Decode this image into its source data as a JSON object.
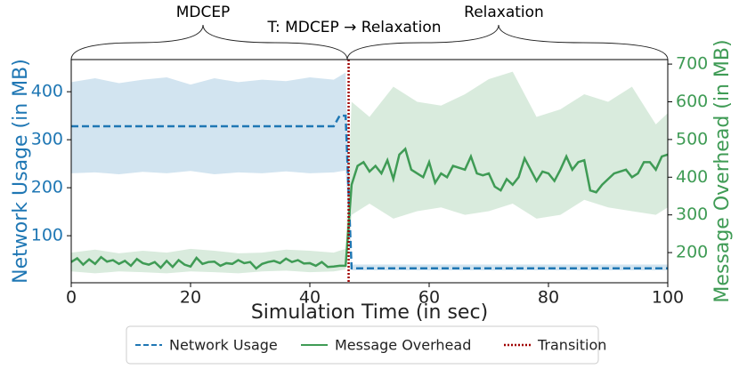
{
  "chart_data": {
    "type": "line",
    "annotations": [
      "MDCEP",
      "T: MDCEP → Relaxation",
      "Relaxation"
    ],
    "xlabel": "Simulation Time (in sec)",
    "ylabel": "Network Usage (in MB)",
    "y2label": "Message Overhead (in MB)",
    "xlim": [
      0,
      100
    ],
    "xticks": [
      0,
      20,
      40,
      60,
      80,
      100
    ],
    "ylim": [
      2,
      467
    ],
    "yticks": [
      100,
      200,
      300,
      400
    ],
    "y2lim": [
      120,
      712
    ],
    "y2ticks": [
      200,
      300,
      400,
      500,
      600,
      700
    ],
    "band_x": [
      0,
      4,
      8,
      12,
      16,
      20,
      24,
      28,
      32,
      36,
      40,
      44,
      46,
      47,
      50,
      54,
      58,
      62,
      66,
      70,
      74,
      78,
      82,
      86,
      90,
      94,
      98,
      100
    ],
    "series": [
      {
        "name": "Network Usage",
        "color": "#1f77b4",
        "axis": "y",
        "dashed": true,
        "x": [
          0,
          44,
          45,
          46,
          47,
          100
        ],
        "values": [
          328,
          328,
          350,
          350,
          32,
          32
        ],
        "band_lower": [
          230,
          232,
          228,
          233,
          230,
          235,
          228,
          232,
          230,
          234,
          230,
          232,
          236,
          28,
          28,
          28,
          28,
          28,
          28,
          28,
          28,
          28,
          28,
          28,
          28,
          28,
          28,
          28
        ],
        "band_upper": [
          420,
          428,
          418,
          425,
          430,
          415,
          428,
          420,
          425,
          422,
          430,
          425,
          440,
          40,
          40,
          40,
          40,
          40,
          40,
          40,
          40,
          40,
          40,
          40,
          40,
          40,
          40,
          40
        ]
      },
      {
        "name": "Message Overhead",
        "color": "#3f9b55",
        "axis": "y2",
        "dashed": false,
        "x": [
          0,
          1,
          2,
          3,
          4,
          5,
          6,
          7,
          8,
          9,
          10,
          11,
          12,
          13,
          14,
          15,
          16,
          17,
          18,
          19,
          20,
          21,
          22,
          23,
          24,
          25,
          26,
          27,
          28,
          29,
          30,
          31,
          32,
          33,
          34,
          35,
          36,
          37,
          38,
          39,
          40,
          41,
          42,
          43,
          44,
          45,
          46,
          47,
          48,
          49,
          50,
          51,
          52,
          53,
          54,
          55,
          56,
          57,
          58,
          59,
          60,
          61,
          62,
          63,
          64,
          65,
          66,
          67,
          68,
          69,
          70,
          71,
          72,
          73,
          74,
          75,
          76,
          77,
          78,
          79,
          80,
          81,
          82,
          83,
          84,
          85,
          86,
          87,
          88,
          89,
          90,
          91,
          92,
          93,
          94,
          95,
          96,
          97,
          98,
          99,
          100
        ],
        "values": [
          175,
          185,
          168,
          182,
          170,
          188,
          176,
          180,
          170,
          178,
          165,
          183,
          172,
          168,
          175,
          160,
          178,
          162,
          180,
          168,
          163,
          186,
          170,
          175,
          176,
          165,
          172,
          170,
          180,
          172,
          175,
          158,
          170,
          175,
          178,
          172,
          184,
          175,
          180,
          171,
          172,
          165,
          175,
          162,
          163,
          165,
          165,
          380,
          430,
          440,
          415,
          430,
          410,
          445,
          395,
          460,
          475,
          420,
          410,
          400,
          440,
          385,
          410,
          400,
          430,
          425,
          420,
          455,
          410,
          405,
          410,
          375,
          365,
          395,
          380,
          400,
          450,
          420,
          390,
          415,
          410,
          390,
          420,
          455,
          420,
          440,
          445,
          365,
          360,
          380,
          395,
          410,
          415,
          420,
          400,
          410,
          440,
          440,
          420,
          455,
          460
        ],
        "band_lower": [
          150,
          145,
          150,
          148,
          145,
          150,
          148,
          145,
          150,
          152,
          148,
          150,
          155,
          300,
          330,
          290,
          310,
          320,
          300,
          310,
          330,
          290,
          300,
          340,
          320,
          310,
          300,
          320
        ],
        "band_upper": [
          200,
          208,
          198,
          205,
          200,
          210,
          205,
          198,
          200,
          208,
          205,
          200,
          210,
          600,
          560,
          640,
          600,
          590,
          620,
          660,
          680,
          560,
          580,
          620,
          600,
          640,
          540,
          570
        ]
      }
    ],
    "transition": {
      "name": "Transition",
      "color": "#a00000",
      "x": 46.5
    }
  }
}
